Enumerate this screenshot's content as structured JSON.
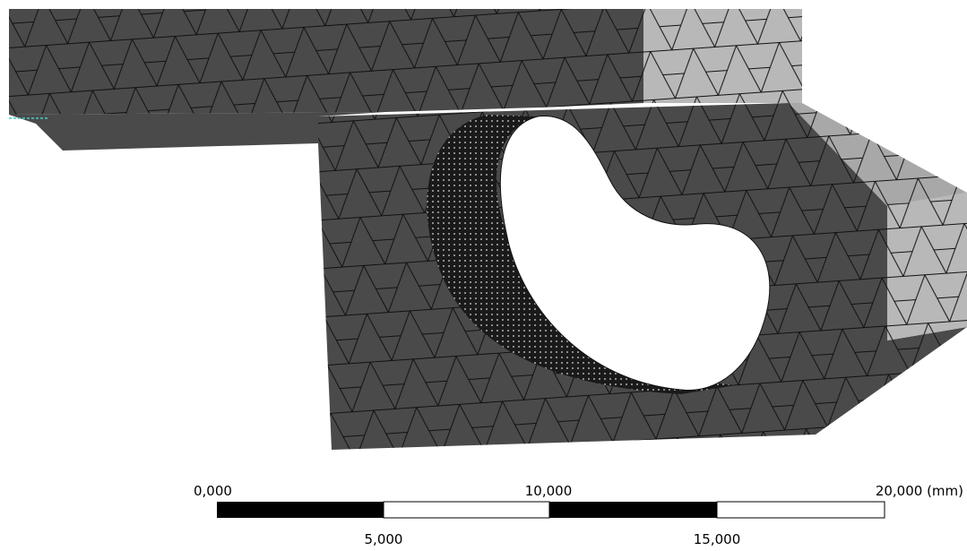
{
  "scale_bar": {
    "top_labels": [
      "0,000",
      "10,000",
      "20,000 (mm)"
    ],
    "bottom_labels": [
      "5,000",
      "15,000"
    ]
  }
}
